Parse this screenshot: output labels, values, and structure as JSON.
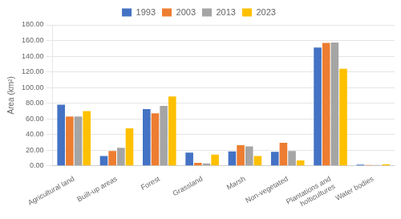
{
  "chart_data": {
    "type": "bar",
    "categories": [
      "Agricultural land",
      "Built-up areas",
      "Forest",
      "Grassland",
      "Marsh",
      "Non-vegetated",
      "Plantations and\nholticultures",
      "Water bodies"
    ],
    "series": [
      {
        "name": "1993",
        "color": "#4472C4",
        "values": [
          78.0,
          12.5,
          72.5,
          17.0,
          18.5,
          18.0,
          151.0,
          1.5
        ]
      },
      {
        "name": "2003",
        "color": "#ED7D31",
        "values": [
          63.0,
          19.0,
          67.0,
          4.0,
          26.5,
          29.5,
          157.0,
          1.0
        ]
      },
      {
        "name": "2013",
        "color": "#A5A5A5",
        "values": [
          63.0,
          23.0,
          76.5,
          3.0,
          25.0,
          19.0,
          157.5,
          1.0
        ]
      },
      {
        "name": "2023",
        "color": "#FFC000",
        "values": [
          70.0,
          48.0,
          88.5,
          14.5,
          12.5,
          7.0,
          124.0,
          2.0
        ]
      }
    ],
    "ylabel": "Area (km²)",
    "ylim": [
      0,
      180
    ],
    "yticks": [
      {
        "value": 0,
        "label": "0.00"
      },
      {
        "value": 20,
        "label": "20.00"
      },
      {
        "value": 40,
        "label": "40.00"
      },
      {
        "value": 60,
        "label": "60.00"
      },
      {
        "value": 80,
        "label": "80.00"
      },
      {
        "value": 100,
        "label": "100.00"
      },
      {
        "value": 120,
        "label": "120.00"
      },
      {
        "value": 140,
        "label": "140.00"
      },
      {
        "value": 160,
        "label": "160.00"
      },
      {
        "value": 180,
        "label": "180.00"
      }
    ],
    "grid": true,
    "legend": "top"
  }
}
